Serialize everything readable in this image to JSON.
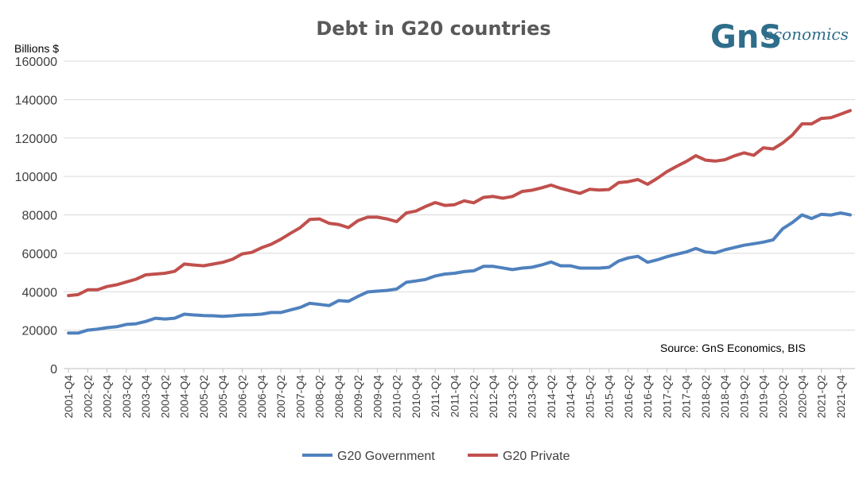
{
  "chart_data": {
    "type": "line",
    "title": "Debt in G20 countries",
    "ylabel": "Billions $",
    "ylim": [
      0,
      160000
    ],
    "yticks": [
      0,
      20000,
      40000,
      60000,
      80000,
      100000,
      120000,
      140000,
      160000
    ],
    "ytick_labels": [
      "0",
      "20000",
      "40000",
      "60000",
      "80000",
      "100000",
      "120000",
      "140000",
      "160000"
    ],
    "grid": true,
    "legend_position": "bottom",
    "source_note": "Source: GnS Economics, BIS",
    "x": [
      "2001-Q4",
      "2002-Q1",
      "2002-Q2",
      "2002-Q3",
      "2002-Q4",
      "2003-Q1",
      "2003-Q2",
      "2003-Q3",
      "2003-Q4",
      "2004-Q1",
      "2004-Q2",
      "2004-Q3",
      "2004-Q4",
      "2005-Q1",
      "2005-Q2",
      "2005-Q3",
      "2005-Q4",
      "2006-Q1",
      "2006-Q2",
      "2006-Q3",
      "2006-Q4",
      "2007-Q1",
      "2007-Q2",
      "2007-Q3",
      "2007-Q4",
      "2008-Q1",
      "2008-Q2",
      "2008-Q3",
      "2008-Q4",
      "2009-Q1",
      "2009-Q2",
      "2009-Q3",
      "2009-Q4",
      "2010-Q1",
      "2010-Q2",
      "2010-Q3",
      "2010-Q4",
      "2011-Q1",
      "2011-Q2",
      "2011-Q3",
      "2011-Q4",
      "2012-Q1",
      "2012-Q2",
      "2012-Q3",
      "2012-Q4",
      "2013-Q1",
      "2013-Q2",
      "2013-Q3",
      "2013-Q4",
      "2014-Q1",
      "2014-Q2",
      "2014-Q3",
      "2014-Q4",
      "2015-Q1",
      "2015-Q2",
      "2015-Q3",
      "2015-Q4",
      "2016-Q1",
      "2016-Q2",
      "2016-Q3",
      "2016-Q4",
      "2017-Q1",
      "2017-Q2",
      "2017-Q3",
      "2017-Q4",
      "2018-Q1",
      "2018-Q2",
      "2018-Q3",
      "2018-Q4",
      "2019-Q1",
      "2019-Q2",
      "2019-Q3",
      "2019-Q4",
      "2020-Q1",
      "2020-Q2",
      "2020-Q3",
      "2020-Q4",
      "2021-Q1",
      "2021-Q2",
      "2021-Q3",
      "2021-Q4",
      "2022-Q1"
    ],
    "xtick_labels": [
      "2001-Q4",
      "2002-Q2",
      "2002-Q4",
      "2003-Q2",
      "2003-Q4",
      "2004-Q2",
      "2004-Q4",
      "2005-Q2",
      "2005-Q4",
      "2006-Q2",
      "2006-Q4",
      "2007-Q2",
      "2007-Q4",
      "2008-Q2",
      "2008-Q4",
      "2009-Q2",
      "2009-Q4",
      "2010-Q2",
      "2010-Q4",
      "2011-Q2",
      "2011-Q4",
      "2012-Q2",
      "2012-Q4",
      "2013-Q2",
      "2013-Q4",
      "2014-Q2",
      "2014-Q4",
      "2015-Q2",
      "2015-Q4",
      "2016-Q2",
      "2016-Q4",
      "2017-Q2",
      "2017-Q4",
      "2018-Q2",
      "2018-Q4",
      "2019-Q2",
      "2019-Q4",
      "2020-Q2",
      "2020-Q4",
      "2021-Q2",
      "2021-Q4"
    ],
    "series": [
      {
        "name": "G20 Government",
        "color": "#4f81bd",
        "values": [
          18500,
          18500,
          20000,
          20500,
          21300,
          21800,
          23000,
          23300,
          24500,
          26200,
          25800,
          26200,
          28300,
          27900,
          27600,
          27500,
          27200,
          27500,
          27900,
          28000,
          28300,
          29200,
          29200,
          30500,
          31800,
          34000,
          33400,
          32800,
          35400,
          35000,
          37600,
          39900,
          40300,
          40700,
          41400,
          44900,
          45600,
          46400,
          48200,
          49200,
          49600,
          50500,
          50900,
          53200,
          53200,
          52400,
          51500,
          52300,
          52700,
          53900,
          55500,
          53500,
          53500,
          52300,
          52300,
          52300,
          52700,
          56000,
          57600,
          58400,
          55300,
          56600,
          58200,
          59500,
          60700,
          62500,
          60700,
          60200,
          61800,
          63000,
          64200,
          65000,
          65800,
          67000,
          72800,
          76000,
          80000,
          78100,
          80300,
          79900,
          81000,
          80000
        ]
      },
      {
        "name": "G20 Private",
        "color": "#c0504d",
        "values": [
          38000,
          38500,
          41000,
          41000,
          42700,
          43600,
          45100,
          46500,
          48800,
          49200,
          49600,
          50600,
          54400,
          53900,
          53500,
          54400,
          55300,
          56900,
          59700,
          60500,
          62900,
          64700,
          67300,
          70400,
          73300,
          77600,
          77900,
          75600,
          75000,
          73400,
          77000,
          78800,
          78800,
          77900,
          76500,
          81000,
          82000,
          84400,
          86400,
          84900,
          85300,
          87300,
          86300,
          89100,
          89600,
          88700,
          89600,
          92200,
          92800,
          94000,
          95500,
          93800,
          92500,
          91200,
          93300,
          92900,
          93200,
          96800,
          97300,
          98400,
          95900,
          99000,
          102500,
          105200,
          107800,
          110800,
          108500,
          108000,
          108700,
          110700,
          112300,
          111000,
          114900,
          114300,
          117400,
          121500,
          127400,
          127400,
          130200,
          130600,
          132400,
          134300
        ]
      }
    ]
  },
  "logo": {
    "mark": "GnS",
    "text": "economics"
  }
}
